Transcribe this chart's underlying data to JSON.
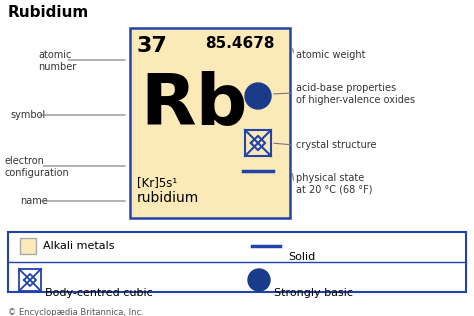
{
  "title": "Rubidium",
  "bg_color": "#ffffff",
  "card_bg": "#fce9b8",
  "card_border": "#2244aa",
  "atomic_number": "37",
  "atomic_weight": "85.4678",
  "symbol": "Rb",
  "electron_config": "[Kr]5s¹",
  "name": "rubidium",
  "copyright": "© Encyclopædia Britannica, Inc.",
  "dot_color": "#1a3a8a",
  "cube_color": "#2244aa",
  "line_color": "#2244aa",
  "legend_border": "#2244aa"
}
